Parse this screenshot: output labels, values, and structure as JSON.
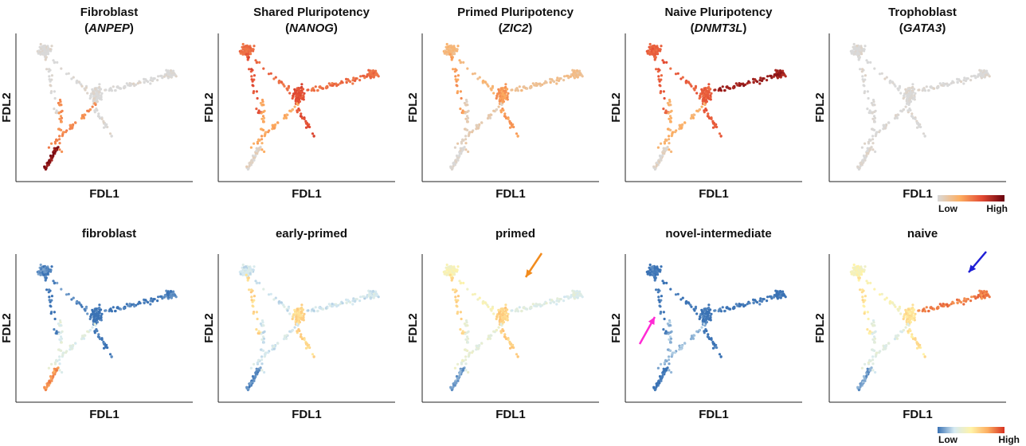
{
  "chart_data": [
    {
      "type": "scatter",
      "panel": "fibroblast-marker",
      "title": "Fibroblast",
      "gene": "ANPEP",
      "xlabel": "FDL1",
      "ylabel": "FDL2",
      "palette": "reds",
      "grid": false,
      "expression": {
        "fibroblast": 0.9,
        "branch_bottom": 0.45,
        "center": 0.0,
        "right_arm": 0.0,
        "top_left": 0.0
      }
    },
    {
      "type": "scatter",
      "panel": "shared-pluripotency",
      "title": "Shared Pluripotency",
      "gene": "NANOG",
      "xlabel": "FDL1",
      "ylabel": "FDL2",
      "palette": "reds",
      "grid": false,
      "expression": {
        "fibroblast": 0.05,
        "branch_bottom": 0.35,
        "center": 0.65,
        "right_arm": 0.55,
        "top_left": 0.55
      }
    },
    {
      "type": "scatter",
      "panel": "primed-pluripotency",
      "title": "Primed Pluripotency",
      "gene": "ZIC2",
      "xlabel": "FDL1",
      "ylabel": "FDL2",
      "palette": "reds",
      "grid": false,
      "expression": {
        "fibroblast": 0.0,
        "branch_bottom": 0.1,
        "center": 0.4,
        "right_arm": 0.2,
        "top_left": 0.25
      }
    },
    {
      "type": "scatter",
      "panel": "naive-pluripotency",
      "title": "Naive Pluripotency",
      "gene": "DNMT3L",
      "xlabel": "FDL1",
      "ylabel": "FDL2",
      "palette": "reds",
      "grid": false,
      "expression": {
        "fibroblast": 0.05,
        "branch_bottom": 0.3,
        "center": 0.6,
        "right_arm": 0.85,
        "top_left": 0.6
      }
    },
    {
      "type": "scatter",
      "panel": "trophoblast-marker",
      "title": "Trophoblast",
      "gene": "GATA3",
      "xlabel": "FDL1",
      "ylabel": "FDL2",
      "palette": "reds",
      "grid": false,
      "expression": {
        "fibroblast": 0.0,
        "branch_bottom": 0.0,
        "center": 0.0,
        "right_arm": 0.0,
        "top_left": 0.0
      }
    },
    {
      "type": "scatter",
      "panel": "fibroblast-score",
      "title": "fibroblast",
      "xlabel": "FDL1",
      "ylabel": "FDL2",
      "palette": "rdylbu",
      "grid": false,
      "expression": {
        "fibroblast": 0.8,
        "branch_bottom": 0.3,
        "center": 0.0,
        "right_arm": 0.02,
        "top_left": 0.05
      }
    },
    {
      "type": "scatter",
      "panel": "early-primed-score",
      "title": "early-primed",
      "xlabel": "FDL1",
      "ylabel": "FDL2",
      "palette": "rdylbu",
      "grid": false,
      "expression": {
        "fibroblast": 0.05,
        "branch_bottom": 0.25,
        "center": 0.6,
        "right_arm": 0.25,
        "top_left": 0.25
      }
    },
    {
      "type": "scatter",
      "panel": "primed-score",
      "title": "primed",
      "xlabel": "FDL1",
      "ylabel": "FDL2",
      "palette": "rdylbu",
      "grid": false,
      "expression": {
        "fibroblast": 0.1,
        "branch_bottom": 0.35,
        "center": 0.62,
        "right_arm": 0.3,
        "top_left": 0.45
      }
    },
    {
      "type": "scatter",
      "panel": "novel-intermediate-score",
      "title": "novel-intermediate",
      "xlabel": "FDL1",
      "ylabel": "FDL2",
      "palette": "rdylbu",
      "grid": false,
      "expression": {
        "fibroblast": 0.0,
        "branch_bottom": 0.15,
        "center": 0.0,
        "right_arm": 0.0,
        "top_left": 0.0
      }
    },
    {
      "type": "scatter",
      "panel": "naive-score",
      "title": "naive",
      "xlabel": "FDL1",
      "ylabel": "FDL2",
      "palette": "rdylbu",
      "grid": false,
      "expression": {
        "fibroblast": 0.1,
        "branch_bottom": 0.3,
        "center": 0.55,
        "right_arm": 0.85,
        "top_left": 0.45
      }
    }
  ],
  "legends": {
    "reds": {
      "low": "Low",
      "high": "High",
      "colors": [
        "#d9d9d9",
        "#fdae61",
        "#e34a33",
        "#67000d"
      ]
    },
    "rdylbu": {
      "low": "Low",
      "high": "High",
      "colors": [
        "#3a72b4",
        "#d6eaf2",
        "#fff3a8",
        "#fdae61",
        "#d7301f"
      ]
    }
  },
  "arrows": [
    {
      "panel": 7,
      "color": "#f28b1d"
    },
    {
      "panel": 8,
      "color": "#ff2ad4"
    },
    {
      "panel": 9,
      "color": "#1f1fd6"
    }
  ]
}
